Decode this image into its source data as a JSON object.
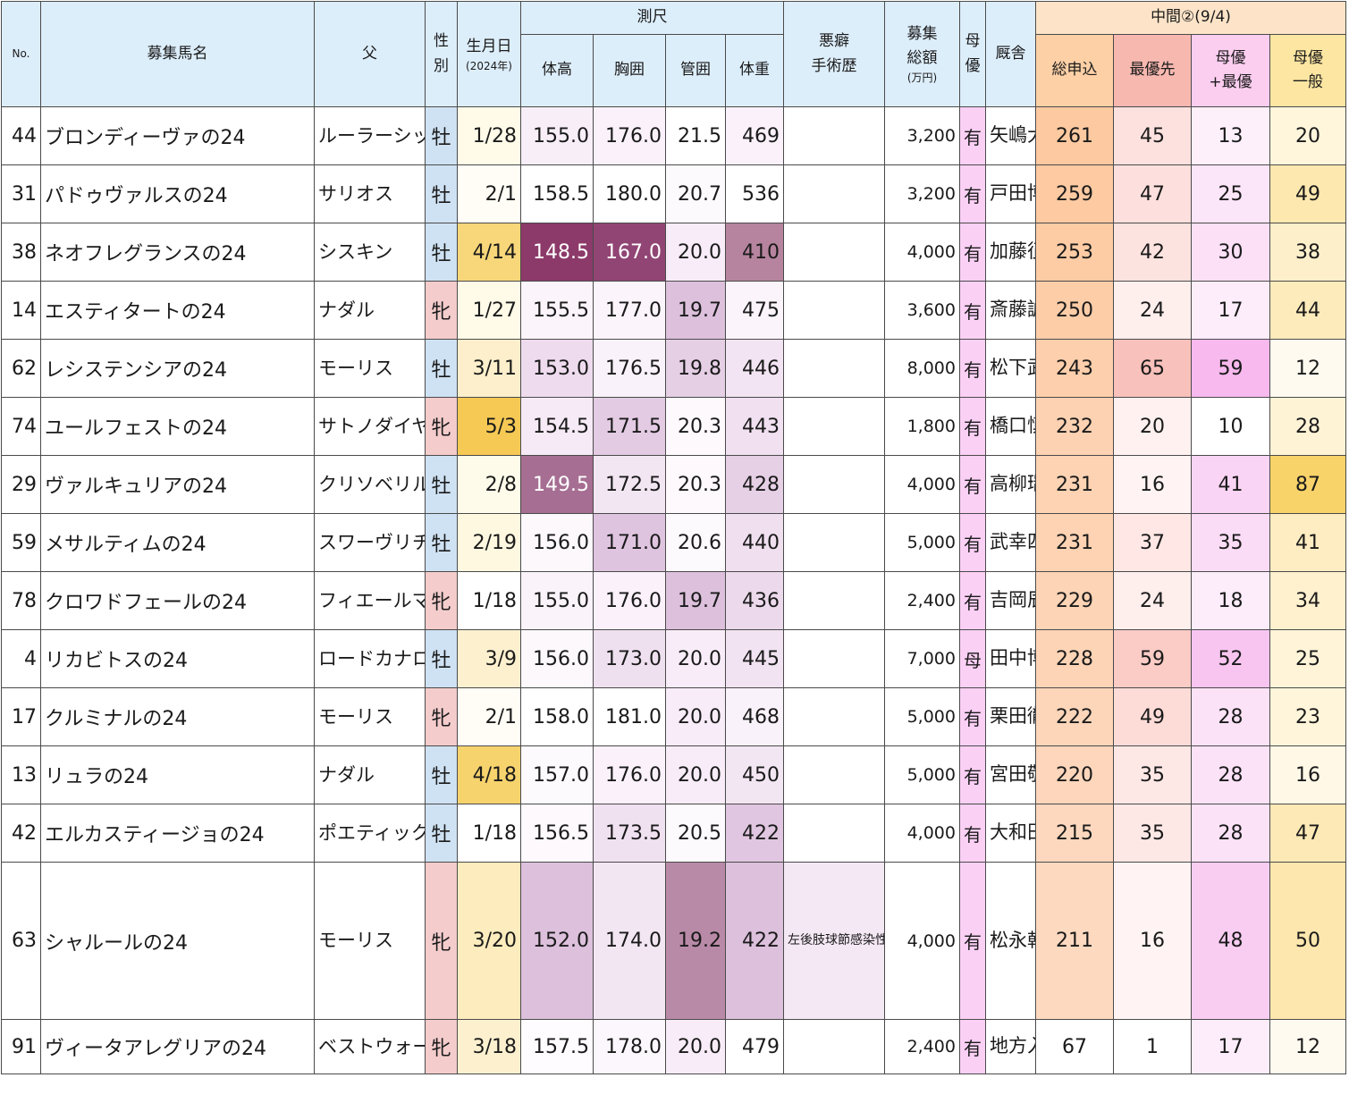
{
  "headers": {
    "no": "No.",
    "name": "募集馬名",
    "sire": "父",
    "sex_a": "性",
    "sex_b": "別",
    "birth": "生月日",
    "birth_year": "(2024年)",
    "measure_group": "測尺",
    "height": "体高",
    "girth": "胸囲",
    "cannon": "管囲",
    "weight": "体重",
    "history_a": "悪癖",
    "history_b": "手術歴",
    "price_a": "募集",
    "price_b": "総額",
    "price_unit": "(万円)",
    "dam_a": "母",
    "dam_b": "優",
    "stable": "厩舎",
    "mid_group": "中間②(9/4)",
    "total": "総申込",
    "first": "最優先",
    "mf_a": "母優",
    "mf_b": "+最優",
    "mg_a": "母優",
    "mg_b": "一般"
  },
  "colors": {
    "header_bg": "#ddeefb",
    "male_bg": "#cfe2f3",
    "female_bg": "#f4cccc",
    "dam_bg": "#fbd0f5",
    "total_bg": "#fdd0a8"
  },
  "rows": [
    {
      "no": "44",
      "name": "ブロンディーヴァの24",
      "sire": "ルーラーシップ",
      "sex": "牡",
      "birth": "1/28",
      "height": "155.0",
      "girth": "176.0",
      "cannon": "21.5",
      "weight": "469",
      "history": "",
      "price": "3,200",
      "dam": "有",
      "stable": "矢嶋大樹",
      "total": "261",
      "first": "45",
      "mf": "13",
      "mg": "20",
      "bg": {
        "birth": "#fffbe8",
        "height": "#f8eef8",
        "girth": "#faf1fa",
        "cannon": "#ffffff",
        "weight": "#faf1fa",
        "total": "#fdc9a0",
        "first": "#fde1de",
        "mf": "#fdf0fb",
        "mg": "#fff6dc"
      }
    },
    {
      "no": "31",
      "name": "パドゥヴァルスの24",
      "sire": "サリオス",
      "sex": "牡",
      "birth": "2/1",
      "height": "158.5",
      "girth": "180.0",
      "cannon": "20.7",
      "weight": "536",
      "history": "",
      "price": "3,200",
      "dam": "有",
      "stable": "戸田博文",
      "total": "259",
      "first": "47",
      "mf": "25",
      "mg": "49",
      "bg": {
        "birth": "#fffdf5",
        "height": "#ffffff",
        "girth": "#ffffff",
        "cannon": "#fdfafd",
        "weight": "#ffffff",
        "total": "#fdcaa2",
        "first": "#fde0dd",
        "mf": "#fbe5f8",
        "mg": "#fde8b0"
      }
    },
    {
      "no": "38",
      "name": "ネオフレグランスの24",
      "sire": "シスキン",
      "sex": "牡",
      "birth": "4/14",
      "height": "148.5",
      "girth": "167.0",
      "cannon": "20.0",
      "weight": "410",
      "history": "",
      "price": "4,000",
      "dam": "有",
      "stable": "加藤征弘",
      "total": "253",
      "first": "42",
      "mf": "30",
      "mg": "38",
      "bg": {
        "birth": "#f8d77a",
        "height": "#8c3a6a",
        "girth": "#914574",
        "cannon": "#f7ecf7",
        "weight": "#b6849f",
        "total": "#fdcca5",
        "first": "#fde3e0",
        "mf": "#fbe0f6",
        "mg": "#feefcb"
      },
      "dark": [
        "height",
        "girth"
      ]
    },
    {
      "no": "14",
      "name": "エスティタートの24",
      "sire": "ナダル",
      "sex": "牝",
      "birth": "1/27",
      "height": "155.5",
      "girth": "177.0",
      "cannon": "19.7",
      "weight": "475",
      "history": "",
      "price": "3,600",
      "dam": "有",
      "stable": "斎藤誠",
      "total": "250",
      "first": "24",
      "mf": "17",
      "mg": "44",
      "bg": {
        "birth": "#fffbe8",
        "height": "#fbf4fb",
        "girth": "#fbf4fb",
        "cannon": "#dcc0dc",
        "weight": "#fbf4fb",
        "total": "#fdcda8",
        "first": "#feeeec",
        "mf": "#fdedfa",
        "mg": "#fdebbc"
      }
    },
    {
      "no": "62",
      "name": "レシステンシアの24",
      "sire": "モーリス",
      "sex": "牡",
      "birth": "3/11",
      "height": "153.0",
      "girth": "176.5",
      "cannon": "19.8",
      "weight": "446",
      "history": "",
      "price": "8,000",
      "dam": "有",
      "stable": "松下武士",
      "total": "243",
      "first": "65",
      "mf": "59",
      "mg": "12",
      "bg": {
        "birth": "#fdefcc",
        "height": "#eedbee",
        "girth": "#faf2fa",
        "cannon": "#e5cfe5",
        "weight": "#f2e4f2",
        "total": "#fdcfac",
        "first": "#f9c1bb",
        "mf": "#f7b9ee",
        "mg": "#fffaf0"
      }
    },
    {
      "no": "74",
      "name": "ユールフェストの24",
      "sire": "サトノダイヤモンド",
      "sex": "牝",
      "birth": "5/3",
      "height": "154.5",
      "girth": "171.5",
      "cannon": "20.3",
      "weight": "443",
      "history": "",
      "price": "1,800",
      "dam": "有",
      "stable": "橋口慎介",
      "total": "232",
      "first": "20",
      "mf": "10",
      "mg": "28",
      "bg": {
        "birth": "#f6c955",
        "height": "#f5eaf5",
        "girth": "#e3cbe3",
        "cannon": "#fdf9fd",
        "weight": "#f0e0f0",
        "total": "#fdd2b2",
        "first": "#fef1ef",
        "mf": "#ffffff",
        "mg": "#fff3d6"
      }
    },
    {
      "no": "29",
      "name": "ヴァルキュリアの24",
      "sire": "クリソベリル",
      "sex": "牡",
      "birth": "2/8",
      "height": "149.5",
      "girth": "172.5",
      "cannon": "20.3",
      "weight": "428",
      "history": "",
      "price": "4,000",
      "dam": "有",
      "stable": "高柳瑞樹",
      "total": "231",
      "first": "16",
      "mf": "41",
      "mg": "87",
      "bg": {
        "birth": "#fffbea",
        "height": "#a66e92",
        "girth": "#f3e6f3",
        "cannon": "#fdf9fd",
        "weight": "#e6d0e6",
        "total": "#fdd3b3",
        "first": "#fff4f3",
        "mf": "#fad4f4",
        "mg": "#f8d36a"
      },
      "dark": [
        "height"
      ]
    },
    {
      "no": "59",
      "name": "メサルティムの24",
      "sire": "スワーヴリチャード",
      "sex": "牡",
      "birth": "2/19",
      "height": "156.0",
      "girth": "171.0",
      "cannon": "20.6",
      "weight": "440",
      "history": "",
      "price": "5,000",
      "dam": "有",
      "stable": "武幸四郎",
      "total": "231",
      "first": "37",
      "mf": "35",
      "mg": "41",
      "bg": {
        "birth": "#fff8e0",
        "height": "#fcf8fc",
        "girth": "#dfc4df",
        "cannon": "#fdfafd",
        "weight": "#efdfef",
        "total": "#fdd3b3",
        "first": "#fee7e4",
        "mf": "#fbdcf6",
        "mg": "#feedc2"
      }
    },
    {
      "no": "78",
      "name": "クロワドフェールの24",
      "sire": "フィエールマン",
      "sex": "牝",
      "birth": "1/18",
      "height": "155.0",
      "girth": "176.0",
      "cannon": "19.7",
      "weight": "436",
      "history": "",
      "price": "2,400",
      "dam": "有",
      "stable": "吉岡辰弥",
      "total": "229",
      "first": "24",
      "mf": "18",
      "mg": "34",
      "bg": {
        "birth": "#ffffff",
        "height": "#faf3fa",
        "girth": "#faf1fa",
        "cannon": "#dcc0dc",
        "weight": "#ecdaec",
        "total": "#fdd4b5",
        "first": "#feeeec",
        "mf": "#fdecfa",
        "mg": "#fff0ce"
      }
    },
    {
      "no": "4",
      "name": "リカビトスの24",
      "sire": "ロードカナロア",
      "sex": "牡",
      "birth": "3/9",
      "height": "156.0",
      "girth": "173.0",
      "cannon": "20.0",
      "weight": "445",
      "history": "",
      "price": "7,000",
      "dam": "母",
      "stable": "田中博康",
      "total": "228",
      "first": "59",
      "mf": "52",
      "mg": "25",
      "bg": {
        "birth": "#fdf0cf",
        "height": "#fcf8fc",
        "girth": "#efe0ef",
        "cannon": "#f7ecf7",
        "weight": "#f1e3f1",
        "total": "#fdd4b6",
        "first": "#fbcbc6",
        "mf": "#f8c5f0",
        "mg": "#fff4d8"
      }
    },
    {
      "no": "17",
      "name": "クルミナルの24",
      "sire": "モーリス",
      "sex": "牝",
      "birth": "2/1",
      "height": "158.0",
      "girth": "181.0",
      "cannon": "20.0",
      "weight": "468",
      "history": "",
      "price": "5,000",
      "dam": "有",
      "stable": "栗田徹",
      "total": "222",
      "first": "49",
      "mf": "28",
      "mg": "23",
      "bg": {
        "birth": "#fffdf5",
        "height": "#ffffff",
        "girth": "#ffffff",
        "cannon": "#f7ecf7",
        "weight": "#faf2fa",
        "total": "#fdd6ba",
        "first": "#fddcd8",
        "mf": "#fbe2f7",
        "mg": "#fff5da"
      }
    },
    {
      "no": "13",
      "name": "リュラの24",
      "sire": "ナダル",
      "sex": "牡",
      "birth": "4/18",
      "height": "157.0",
      "girth": "176.0",
      "cannon": "20.0",
      "weight": "450",
      "history": "",
      "price": "5,000",
      "dam": "有",
      "stable": "宮田敬介",
      "total": "220",
      "first": "35",
      "mf": "28",
      "mg": "16",
      "bg": {
        "birth": "#f7d36e",
        "height": "#fdfafd",
        "girth": "#faf1fa",
        "cannon": "#f7ecf7",
        "weight": "#f3e6f3",
        "total": "#fdd6bb",
        "first": "#fee8e6",
        "mf": "#fbe2f7",
        "mg": "#fff8e6"
      }
    },
    {
      "no": "42",
      "name": "エルカスティージョの24",
      "sire": "ポエティックフレア",
      "sex": "牡",
      "birth": "1/18",
      "height": "156.5",
      "girth": "173.5",
      "cannon": "20.5",
      "weight": "422",
      "history": "",
      "price": "4,000",
      "dam": "有",
      "stable": "大和田成",
      "total": "215",
      "first": "35",
      "mf": "28",
      "mg": "47",
      "bg": {
        "birth": "#ffffff",
        "height": "#fdf9fd",
        "girth": "#f0e1f0",
        "cannon": "#fdfafd",
        "weight": "#e0c6e0",
        "total": "#fdd8be",
        "first": "#fee8e6",
        "mf": "#fbe2f7",
        "mg": "#fde9b6"
      }
    },
    {
      "no": "63",
      "name": "シャルールの24",
      "sire": "モーリス",
      "sex": "牝",
      "birth": "3/20",
      "height": "152.0",
      "girth": "174.0",
      "cannon": "19.2",
      "weight": "422",
      "history": "左後肢球節感染性関節炎により関節洗浄、左後肢球節骨折により骨片除去手術、右後肢球節OCD除去手術",
      "price": "4,000",
      "dam": "有",
      "stable": "松永幹夫",
      "total": "211",
      "first": "16",
      "mf": "48",
      "mg": "50",
      "bg": {
        "birth": "#fdecbd",
        "height": "#dcc0dc",
        "girth": "#f3e6f3",
        "cannon": "#b98aa8",
        "weight": "#dcc0dc",
        "history": "#f4e8f4",
        "total": "#fdd9c0",
        "first": "#fff4f3",
        "mf": "#f9cdf2",
        "mg": "#fde7ae"
      }
    },
    {
      "no": "91",
      "name": "ヴィータアレグリアの24",
      "sire": "ベストウォーリア",
      "sex": "牝",
      "birth": "3/18",
      "height": "157.5",
      "girth": "178.0",
      "cannon": "20.0",
      "weight": "479",
      "history": "",
      "price": "2,400",
      "dam": "有",
      "stable": "地方入厩",
      "total": "67",
      "first": "1",
      "mf": "17",
      "mg": "12",
      "bg": {
        "birth": "#fdf0cf",
        "height": "#fefcfe",
        "girth": "#fcf7fc",
        "cannon": "#f7ecf7",
        "weight": "#ffffff",
        "total": "#ffffff",
        "first": "#ffffff",
        "mf": "#fdedfa",
        "mg": "#fffaf0"
      }
    }
  ]
}
